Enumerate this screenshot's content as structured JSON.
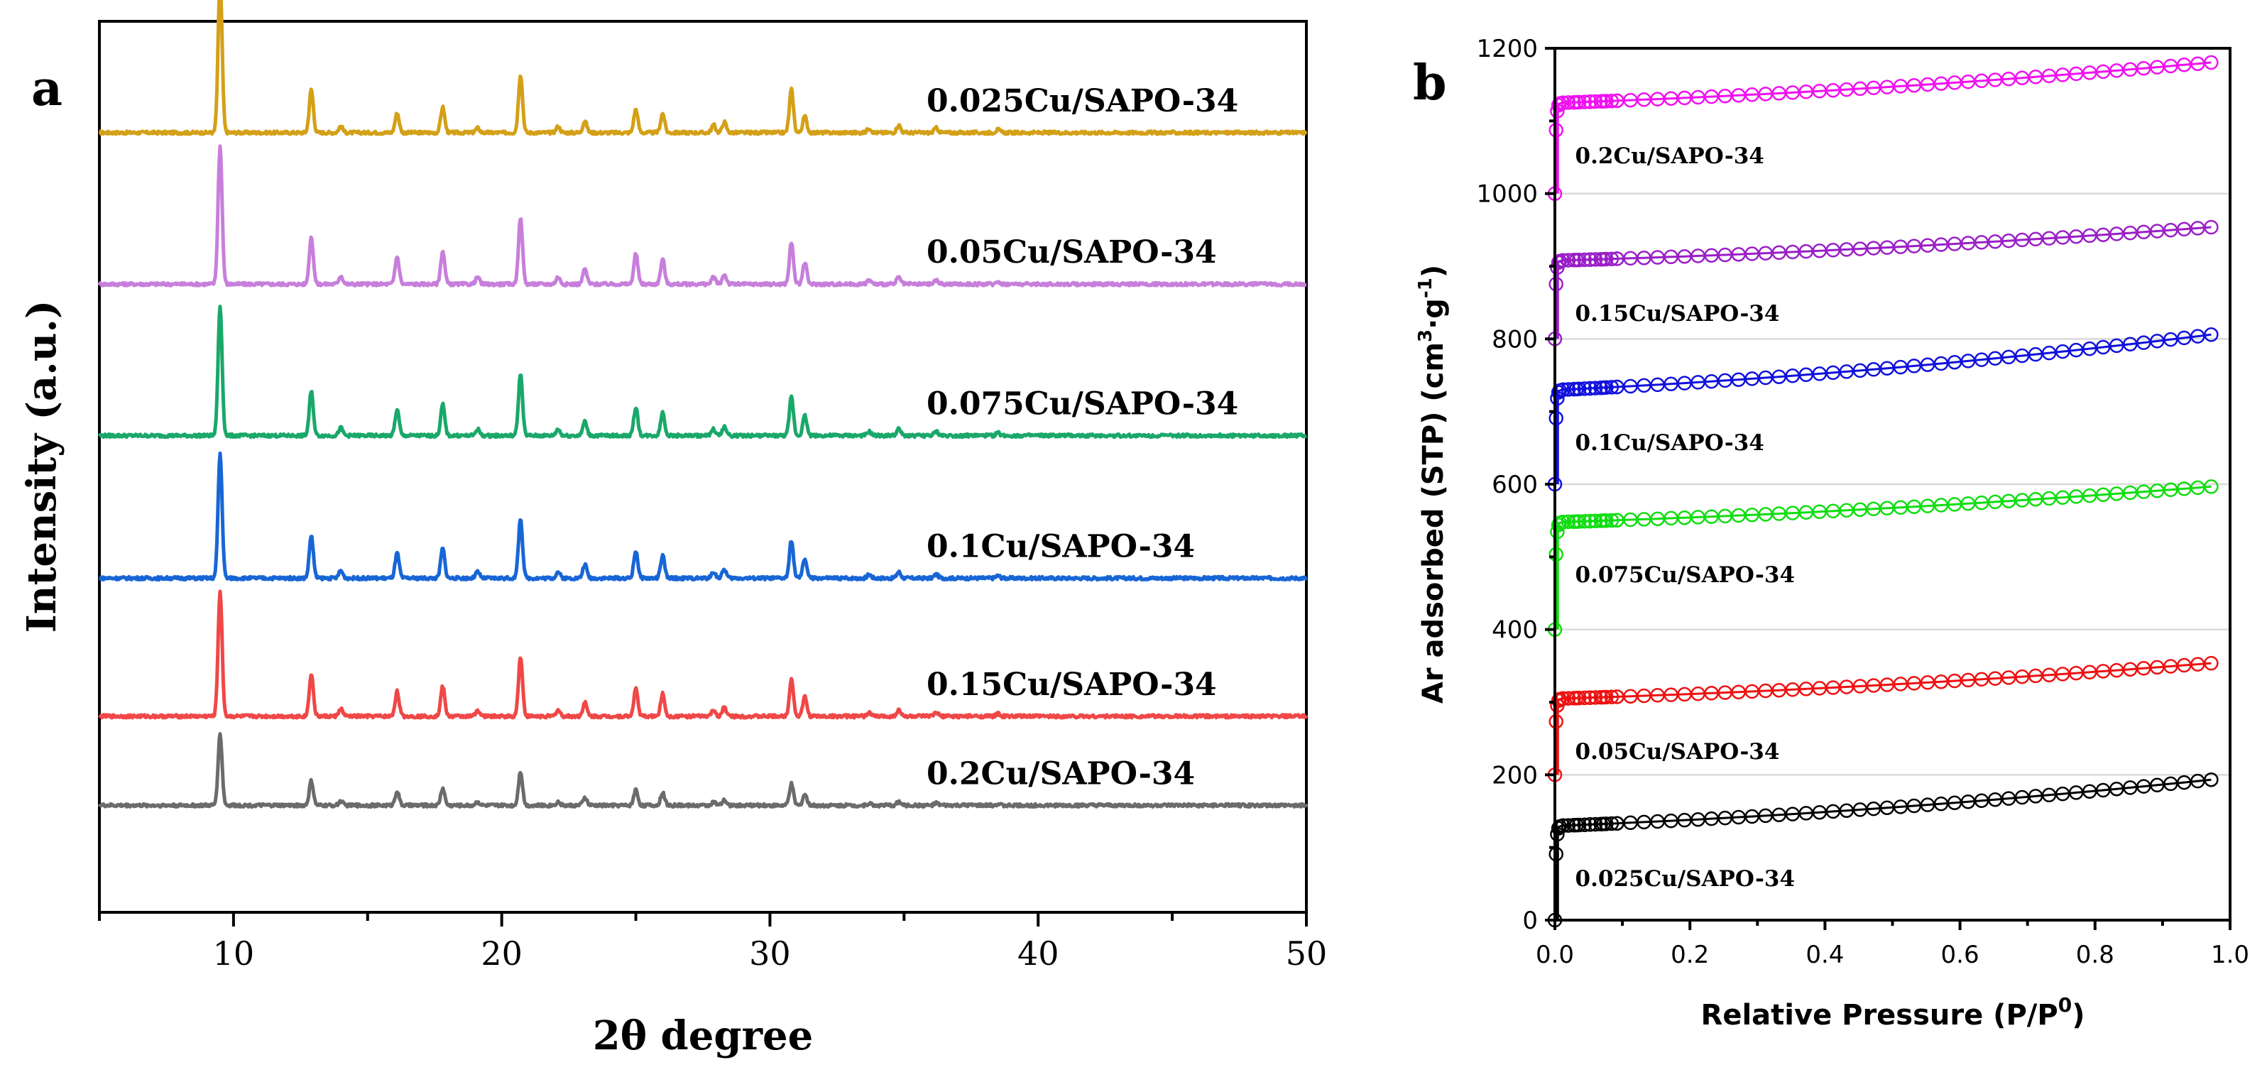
{
  "chart_data": [
    {
      "panel": "a",
      "type": "line",
      "title": "",
      "xlabel": "2θ degree",
      "ylabel": "Intensity (a.u.)",
      "xlim": [
        5,
        50
      ],
      "xticks": [
        10,
        20,
        30,
        40,
        50
      ],
      "ylim": [
        0,
        10
      ],
      "grid": false,
      "peaks_2theta": [
        9.5,
        12.9,
        14.0,
        16.1,
        17.8,
        19.1,
        20.7,
        22.1,
        23.1,
        25.0,
        26.0,
        27.9,
        28.3,
        30.8,
        31.3,
        33.7,
        34.8,
        36.2,
        38.5
      ],
      "peak_relative_intensity": [
        1.0,
        0.38,
        0.06,
        0.2,
        0.24,
        0.05,
        0.48,
        0.05,
        0.11,
        0.22,
        0.18,
        0.05,
        0.07,
        0.3,
        0.12,
        0.03,
        0.05,
        0.03,
        0.02
      ],
      "series": [
        {
          "name": "0.025Cu/SAPO-34",
          "label": "0.025Cu/SAPO-34",
          "color": "#d4a017",
          "baseline": 8.75,
          "peak_height": 1.7,
          "scale": [
            1.0,
            0.75,
            0.7,
            0.65,
            0.7,
            0.6,
            0.8,
            0.8,
            0.7,
            0.7,
            0.7,
            1.0,
            1.0,
            0.95,
            0.9,
            1.0,
            1.0,
            1.0,
            1.0
          ]
        },
        {
          "name": "0.05Cu/SAPO-34",
          "label": "0.05Cu/SAPO-34",
          "color": "#c77fdb",
          "baseline": 7.05,
          "peak_height": 1.55,
          "scale": [
            1.0,
            0.9,
            1.0,
            1.0,
            1.0,
            1.0,
            1.0,
            1.0,
            1.0,
            1.0,
            1.0,
            1.0,
            1.0,
            1.0,
            1.3,
            1.0,
            1.0,
            1.0,
            1.0
          ]
        },
        {
          "name": "0.075Cu/SAPO-34",
          "label": "0.075Cu/SAPO-34",
          "color": "#1aa86a",
          "baseline": 5.35,
          "peak_height": 1.45,
          "scale": [
            1.0,
            0.9,
            1.0,
            1.0,
            1.0,
            1.0,
            1.0,
            1.0,
            1.0,
            1.0,
            1.0,
            1.0,
            1.0,
            1.0,
            1.3,
            1.0,
            1.0,
            1.0,
            1.0
          ]
        },
        {
          "name": "0.1Cu/SAPO-34",
          "label": "0.1Cu/SAPO-34",
          "color": "#1866d6",
          "baseline": 3.75,
          "peak_height": 1.4,
          "scale": [
            1.0,
            0.9,
            1.0,
            1.0,
            1.0,
            1.0,
            1.0,
            1.0,
            1.0,
            1.0,
            1.0,
            1.0,
            1.0,
            1.0,
            1.3,
            1.0,
            1.0,
            1.0,
            1.0
          ]
        },
        {
          "name": "0.15Cu/SAPO-34",
          "label": "0.15Cu/SAPO-34",
          "color": "#f04747",
          "baseline": 2.2,
          "peak_height": 1.4,
          "scale": [
            1.0,
            0.9,
            1.0,
            1.0,
            1.0,
            1.0,
            1.0,
            1.0,
            1.0,
            1.0,
            1.0,
            1.0,
            1.0,
            1.0,
            1.3,
            1.0,
            1.0,
            1.0,
            1.0
          ]
        },
        {
          "name": "0.2Cu/SAPO-34",
          "label": "0.2Cu/SAPO-34",
          "color": "#6b6b6b",
          "baseline": 1.2,
          "peak_height": 0.8,
          "scale": [
            1.0,
            0.9,
            1.0,
            1.0,
            1.0,
            1.0,
            1.0,
            1.0,
            1.0,
            1.0,
            1.0,
            1.0,
            1.0,
            1.0,
            1.3,
            1.0,
            1.0,
            1.0,
            1.0
          ]
        }
      ]
    },
    {
      "panel": "b",
      "type": "scatter",
      "title": "",
      "xlabel": "Relative Pressure (P/P",
      "xlabel_sup": "0",
      "xlabel_end": ")",
      "ylabel": "Ar adsorbed (STP)  (cm",
      "ylabel_sup1": "3",
      "ylabel_mid": "·g",
      "ylabel_sup2": "-1",
      "ylabel_end": ")",
      "xlim": [
        0.0,
        1.0
      ],
      "xticks": [
        "0.0",
        "0.2",
        "0.4",
        "0.6",
        "0.8",
        "1.0"
      ],
      "ylim": [
        0,
        1200
      ],
      "yticks": [
        "0",
        "200",
        "400",
        "600",
        "800",
        "1000",
        "1200"
      ],
      "grid": true,
      "series": [
        {
          "name": "0.025Cu/SAPO-34",
          "label": "0.025Cu/SAPO-34",
          "color": "#000000",
          "low_p_uptake": 0,
          "plateau": 130,
          "end": 195
        },
        {
          "name": "0.05Cu/SAPO-34",
          "label": "0.05Cu/SAPO-34",
          "color": "#ee1111",
          "low_p_uptake": 200,
          "plateau": 305,
          "end": 355
        },
        {
          "name": "0.075Cu/SAPO-34",
          "label": "0.075Cu/SAPO-34",
          "color": "#11dd11",
          "low_p_uptake": 400,
          "plateau": 548,
          "end": 598
        },
        {
          "name": "0.1Cu/SAPO-34",
          "label": "0.1Cu/SAPO-34",
          "color": "#1111dd",
          "low_p_uptake": 600,
          "plateau": 730,
          "end": 808
        },
        {
          "name": "0.15Cu/SAPO-34",
          "label": "0.15Cu/SAPO-34",
          "color": "#9a1fc7",
          "low_p_uptake": 800,
          "plateau": 908,
          "end": 955
        },
        {
          "name": "0.2Cu/SAPO-34",
          "label": "0.2Cu/SAPO-34",
          "color": "#f011f0",
          "low_p_uptake": 1000,
          "plateau": 1125,
          "end": 1182
        }
      ]
    }
  ],
  "panels": {
    "a_letter": "a",
    "b_letter": "b"
  }
}
